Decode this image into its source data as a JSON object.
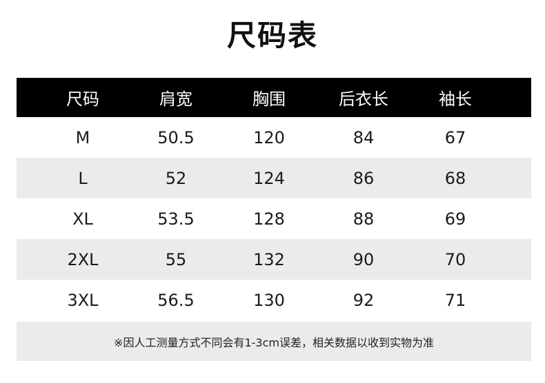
{
  "title": "尺码表",
  "headers": [
    "尺码",
    "肩宽",
    "胸围",
    "后衣长",
    "袖长"
  ],
  "rows": [
    [
      "M",
      "50.5",
      "120",
      "84",
      "67"
    ],
    [
      "L",
      "52",
      "124",
      "86",
      "68"
    ],
    [
      "XL",
      "53.5",
      "128",
      "88",
      "69"
    ],
    [
      "2XL",
      "55",
      "132",
      "90",
      "70"
    ],
    [
      "3XL",
      "56.5",
      "130",
      "92",
      "71"
    ]
  ],
  "note": "※因人工测量方式不同会有1-3cm误差，相关数据以收到实物为准",
  "colors": {
    "header_bg": "#000000",
    "alt_row_bg": "#ebebeb"
  }
}
